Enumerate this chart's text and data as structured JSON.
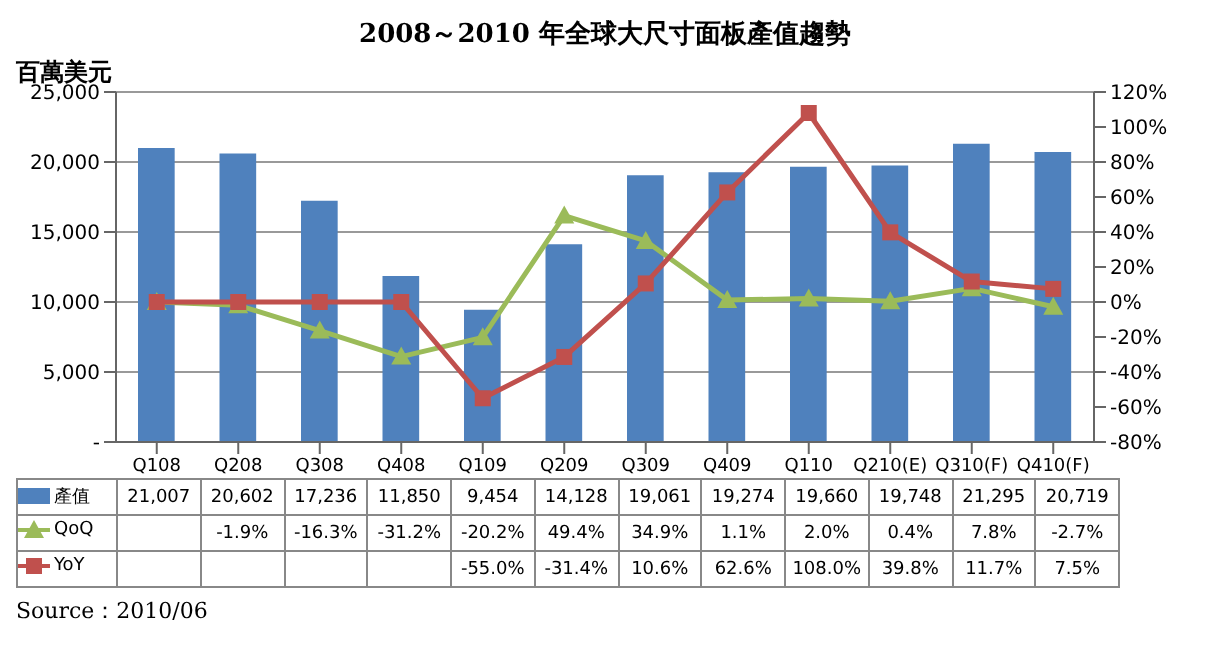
{
  "chart_data": {
    "type": "bar",
    "title": "2008～2010 年全球大尺寸面板產值趨勢",
    "ylabel": "百萬美元",
    "categories": [
      "Q108",
      "Q208",
      "Q308",
      "Q408",
      "Q109",
      "Q209",
      "Q309",
      "Q409",
      "Q110",
      "Q210(E)",
      "Q310(F)",
      "Q410(F)"
    ],
    "series": [
      {
        "name": "產值",
        "color": "#4f81bd",
        "values": [
          21007,
          20602,
          17236,
          11850,
          9454,
          14128,
          19061,
          19274,
          19660,
          19748,
          21295,
          20719
        ],
        "value_labels": [
          "21,007",
          "20,602",
          "17,236",
          "11,850",
          "9,454",
          "14,128",
          "19,061",
          "19,274",
          "19,660",
          "19,748",
          "21,295",
          "20,719"
        ]
      },
      {
        "name": "QoQ",
        "type": "line",
        "axis": "y2",
        "marker": "triangle",
        "color": "#9bbb59",
        "values": [
          0,
          -1.9,
          -16.3,
          -31.2,
          -20.2,
          49.4,
          34.9,
          1.1,
          2.0,
          0.4,
          7.8,
          -2.7
        ],
        "value_labels": [
          null,
          "-1.9%",
          "-16.3%",
          "-31.2%",
          "-20.2%",
          "49.4%",
          "34.9%",
          "1.1%",
          "2.0%",
          "0.4%",
          "7.8%",
          "-2.7%"
        ]
      },
      {
        "name": "YoY",
        "type": "line",
        "axis": "y2",
        "marker": "square",
        "color": "#c0504d",
        "values": [
          0,
          0,
          0,
          0,
          -55.0,
          -31.4,
          10.6,
          62.6,
          108.0,
          39.8,
          11.7,
          7.5
        ],
        "value_labels": [
          null,
          null,
          null,
          null,
          "-55.0%",
          "-31.4%",
          "10.6%",
          "62.6%",
          "108.0%",
          "39.8%",
          "11.7%",
          "7.5%"
        ]
      }
    ],
    "ylim": [
      0,
      25000
    ],
    "yticks": [
      {
        "value": 0,
        "label": "-"
      },
      {
        "value": 5000,
        "label": "5,000"
      },
      {
        "value": 10000,
        "label": "10,000"
      },
      {
        "value": 15000,
        "label": "15,000"
      },
      {
        "value": 20000,
        "label": "20,000"
      },
      {
        "value": 25000,
        "label": "25,000"
      }
    ],
    "y2lim": [
      -80,
      120
    ],
    "y2ticks": [
      {
        "value": -80,
        "label": "-80%"
      },
      {
        "value": -60,
        "label": "-60%"
      },
      {
        "value": -40,
        "label": "-40%"
      },
      {
        "value": -20,
        "label": "-20%"
      },
      {
        "value": 0,
        "label": "0%"
      },
      {
        "value": 20,
        "label": "20%"
      },
      {
        "value": 40,
        "label": "40%"
      },
      {
        "value": 60,
        "label": "60%"
      },
      {
        "value": 80,
        "label": "80%"
      },
      {
        "value": 100,
        "label": "100%"
      },
      {
        "value": 120,
        "label": "120%"
      }
    ],
    "grid": "y",
    "legend": "bottom",
    "line_style": "solid",
    "annotations": [
      "Source：2010/06"
    ]
  }
}
